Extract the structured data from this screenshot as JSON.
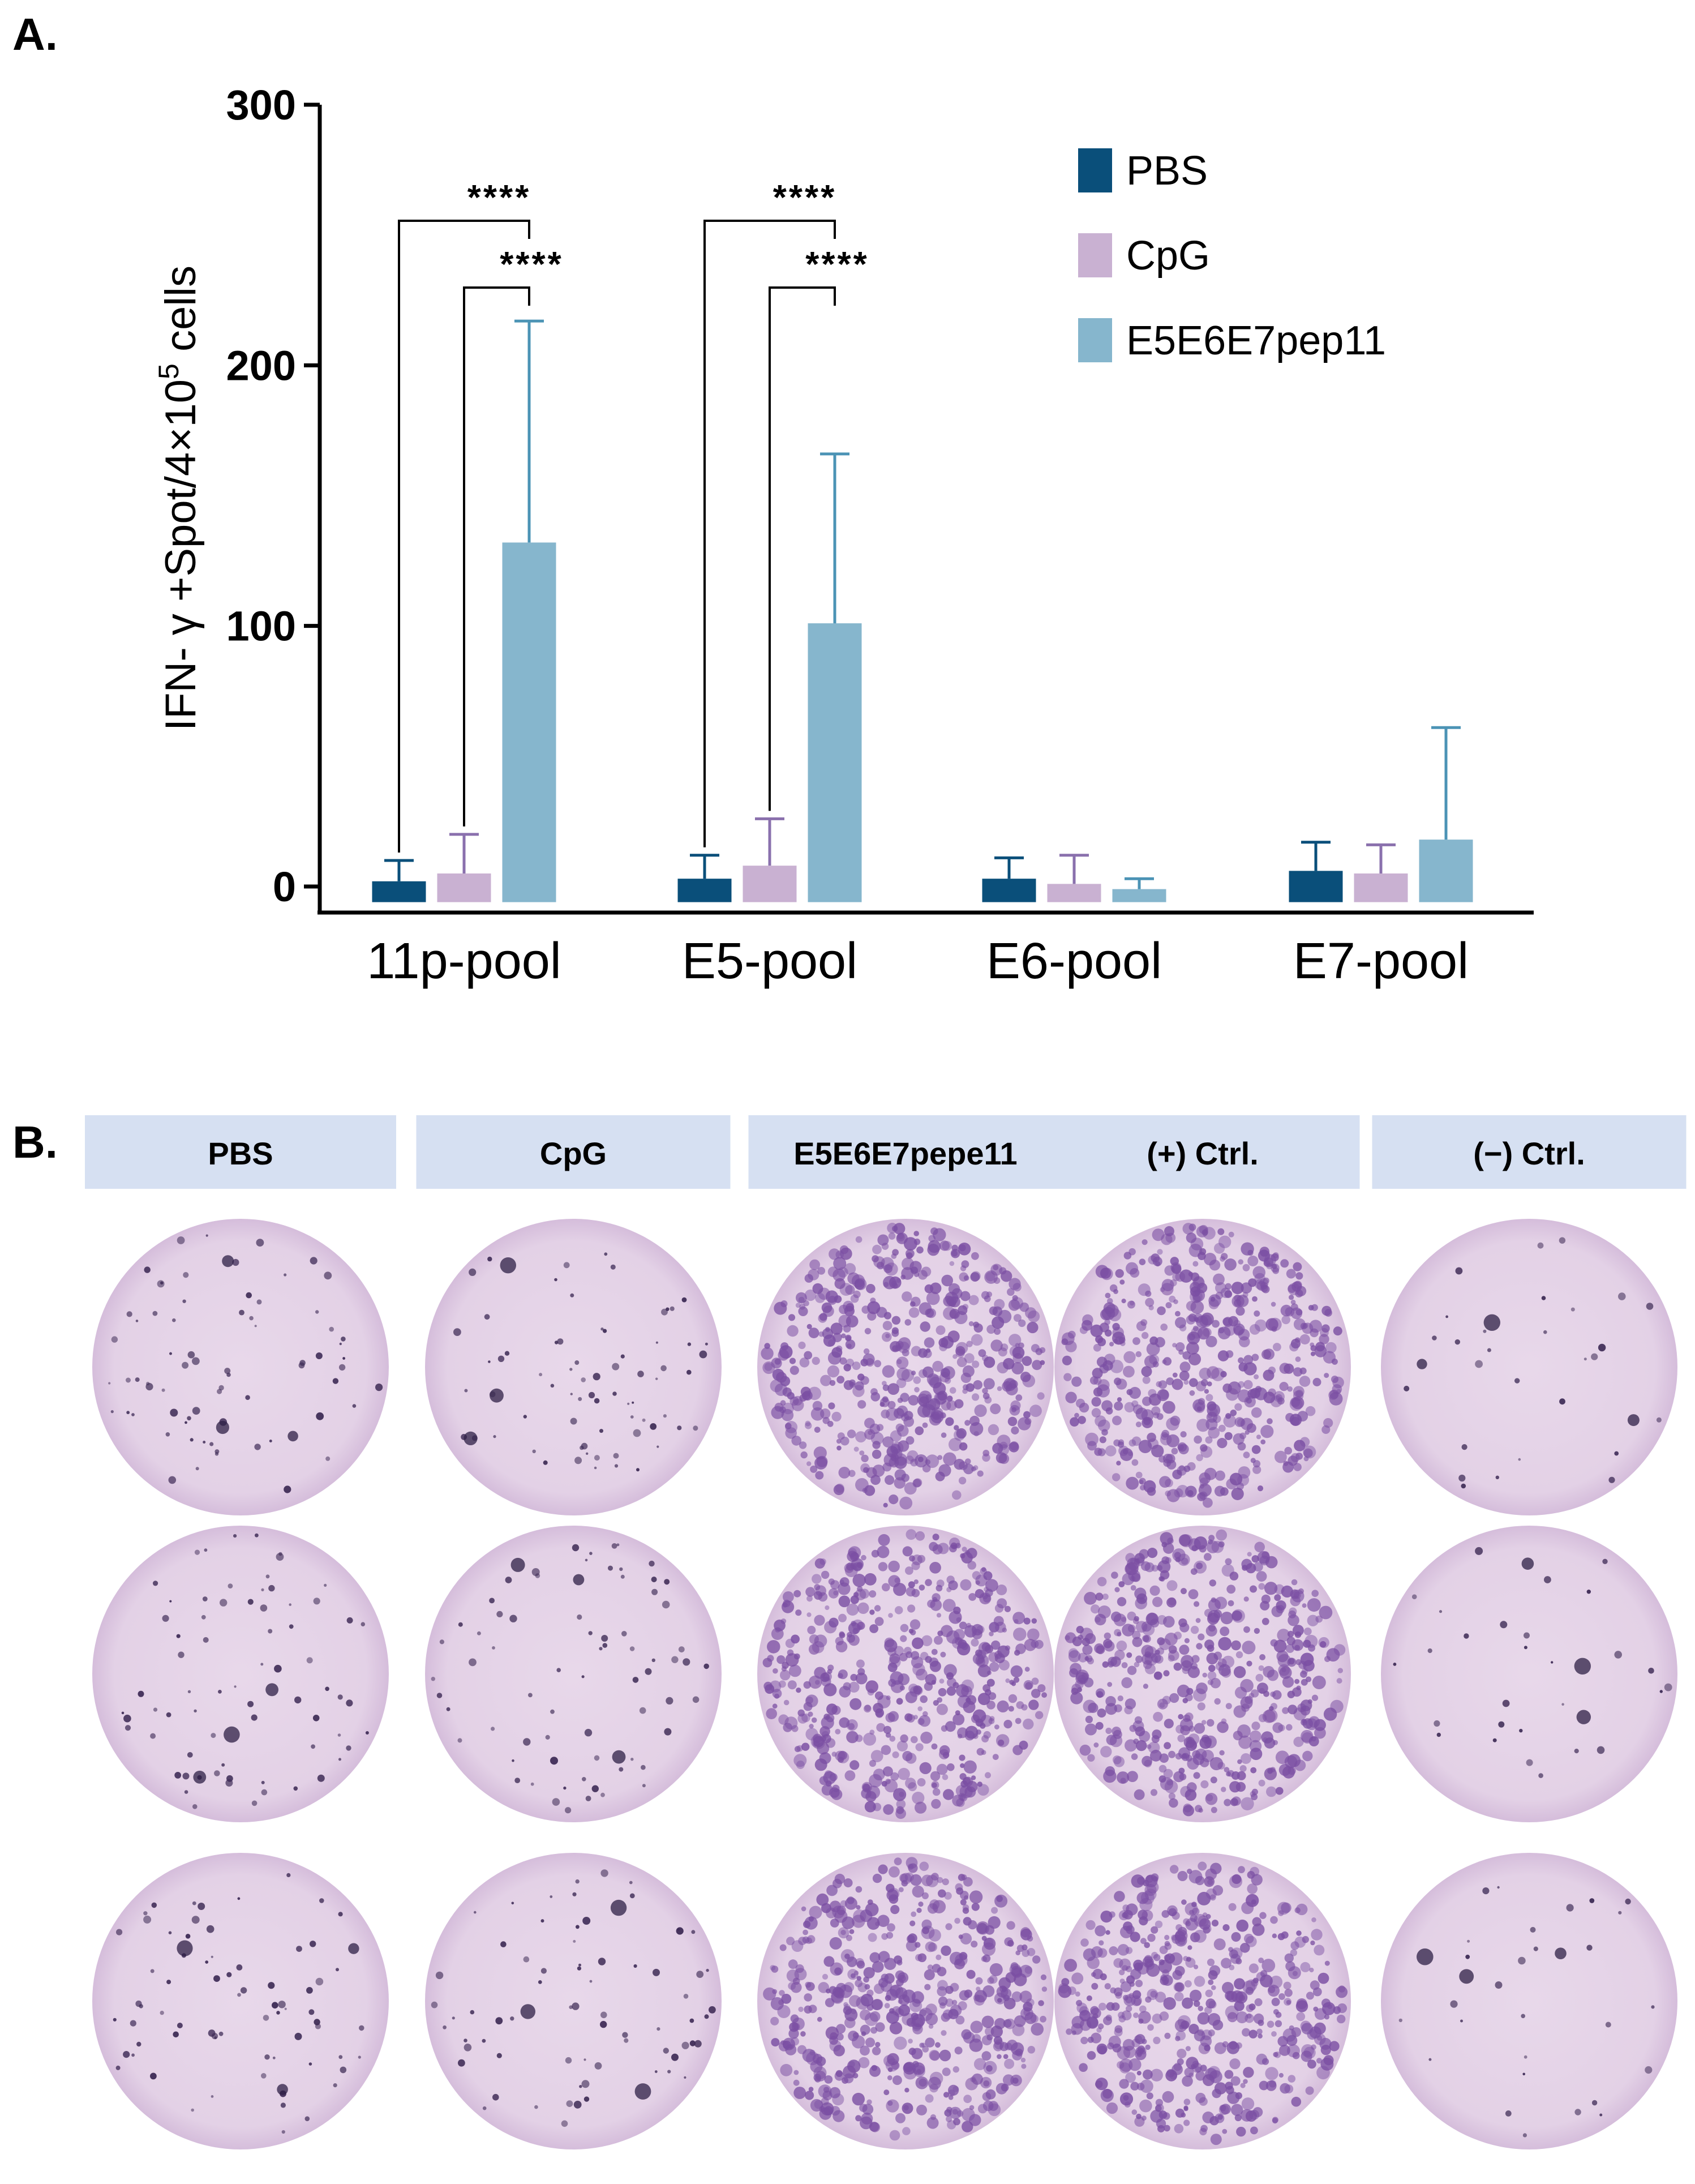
{
  "panel_a_letter": "A.",
  "panel_b_letter": "B.",
  "colors": {
    "PBS": "#0a4f7a",
    "CpG": "#c9b1d2",
    "E5E6E7pep11": "#86b6cd",
    "PBS_err": "#0a4f7a",
    "CpG_err": "#8a70ad",
    "E5E6E7pep11_err": "#4b93b5",
    "well_bg": "#e3d1e6",
    "spot": "#6a3f8e",
    "header_bg": "#d6e0f2"
  },
  "chart_data": {
    "type": "bar",
    "categories": [
      "11p-pool",
      "E5-pool",
      "E6-pool",
      "E7-pool"
    ],
    "series": [
      {
        "name": "PBS",
        "values": [
          2,
          3,
          3,
          6
        ],
        "errors": [
          8,
          9,
          8,
          11
        ]
      },
      {
        "name": "CpG",
        "values": [
          5,
          8,
          1,
          5
        ],
        "errors": [
          15,
          18,
          11,
          11
        ]
      },
      {
        "name": "E5E6E7pep11",
        "values": [
          132,
          101,
          -1,
          18
        ],
        "errors": [
          85,
          65,
          4,
          43
        ]
      }
    ],
    "ylabel_main": "IFN- γ +Spot/4×10",
    "ylabel_sup": "5",
    "ylabel_tail": " cells",
    "ylim": [
      -8,
      300
    ],
    "yticks": [
      0,
      100,
      200,
      300
    ],
    "ytick_labels": [
      "0",
      "100",
      "200",
      "300"
    ],
    "legend_position": "top-right",
    "significance": [
      {
        "category": "11p-pool",
        "from": "PBS",
        "to": "E5E6E7pep11",
        "label": "****"
      },
      {
        "category": "11p-pool",
        "from": "CpG",
        "to": "E5E6E7pep11",
        "label": "****"
      },
      {
        "category": "E5-pool",
        "from": "PBS",
        "to": "E5E6E7pep11",
        "label": "****"
      },
      {
        "category": "E5-pool",
        "from": "CpG",
        "to": "E5E6E7pep11",
        "label": "****"
      }
    ]
  },
  "elispot": {
    "headers": [
      "PBS",
      "CpG",
      "E5E6E7pepe11",
      "(+) Ctrl.",
      "(−) Ctrl."
    ],
    "density": [
      "low",
      "low",
      "high",
      "high",
      "very-low"
    ],
    "replicates": 3
  }
}
